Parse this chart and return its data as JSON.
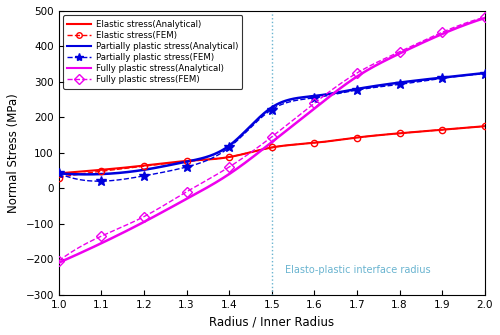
{
  "title": "",
  "xlabel": "Radius / Inner Radius",
  "ylabel": "Normal Stress (MPa)",
  "xlim": [
    1.0,
    2.0
  ],
  "ylim": [
    -300,
    500
  ],
  "xticks": [
    1.0,
    1.1,
    1.2,
    1.3,
    1.4,
    1.5,
    1.6,
    1.7,
    1.8,
    1.9,
    2.0
  ],
  "yticks": [
    -300,
    -200,
    -100,
    0,
    100,
    200,
    300,
    400,
    500
  ],
  "vline_x": 1.5,
  "vline_label": "Elasto-plastic interface radius",
  "vline_color": "#6ab4d0",
  "elastic_color": "#ff0000",
  "partial_color": "#0000dd",
  "full_color": "#ee00ee",
  "background_color": "#ffffff",
  "elastic_analytical_pts_x": [
    1.0,
    1.1,
    1.2,
    1.3,
    1.4,
    1.5,
    1.6,
    1.7,
    1.8,
    1.9,
    2.0
  ],
  "elastic_analytical_pts_y": [
    42,
    52,
    64,
    77,
    88,
    115,
    128,
    143,
    155,
    165,
    175
  ],
  "partial_analytical_pts_x": [
    1.0,
    1.1,
    1.2,
    1.3,
    1.4,
    1.5,
    1.6,
    1.7,
    1.8,
    1.9,
    2.0
  ],
  "partial_analytical_pts_y": [
    42,
    40,
    52,
    75,
    120,
    228,
    260,
    280,
    298,
    312,
    325
  ],
  "full_analytical_pts_x": [
    1.0,
    1.1,
    1.2,
    1.3,
    1.4,
    1.5,
    1.6,
    1.7,
    1.8,
    1.9,
    2.0
  ],
  "full_analytical_pts_y": [
    -210,
    -155,
    -95,
    -30,
    40,
    130,
    225,
    315,
    380,
    435,
    480
  ],
  "elastic_fem_pts_x": [
    1.0,
    1.1,
    1.2,
    1.3,
    1.4,
    1.5,
    1.6,
    1.7,
    1.8,
    1.9,
    2.0
  ],
  "elastic_fem_pts_y": [
    30,
    48,
    62,
    76,
    88,
    115,
    128,
    143,
    155,
    165,
    175
  ],
  "partial_fem_pts_x": [
    1.0,
    1.1,
    1.2,
    1.3,
    1.4,
    1.5,
    1.6,
    1.7,
    1.8,
    1.9,
    2.0
  ],
  "partial_fem_pts_y": [
    42,
    20,
    35,
    60,
    115,
    222,
    255,
    277,
    293,
    310,
    323
  ],
  "full_fem_pts_x": [
    1.0,
    1.1,
    1.2,
    1.3,
    1.4,
    1.5,
    1.6,
    1.7,
    1.8,
    1.9,
    2.0
  ],
  "full_fem_pts_y": [
    -205,
    -135,
    -80,
    -10,
    60,
    145,
    240,
    325,
    385,
    440,
    482
  ],
  "n_line": 300
}
